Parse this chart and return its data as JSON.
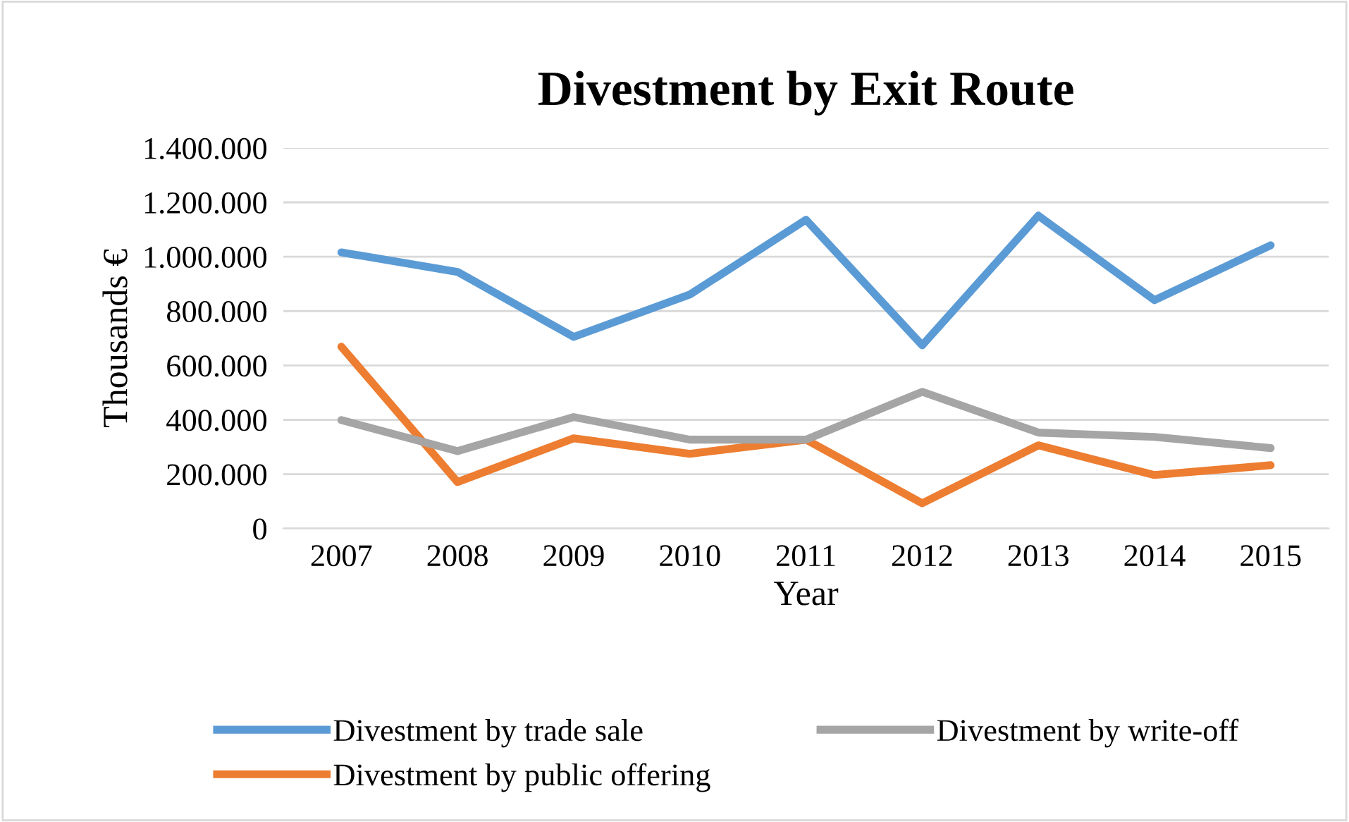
{
  "chart_data": {
    "type": "line",
    "title": "Divestment by Exit Route",
    "xlabel": "Year",
    "ylabel": "Thousands €",
    "categories": [
      "2007",
      "2008",
      "2009",
      "2010",
      "2011",
      "2012",
      "2013",
      "2014",
      "2015"
    ],
    "series": [
      {
        "name": "Divestment by trade sale",
        "color": "#5b9bd5",
        "values": [
          1016000,
          944000,
          705000,
          861000,
          1136000,
          674000,
          1151000,
          840000,
          1042000
        ]
      },
      {
        "name": "Divestment by public offering",
        "color": "#ed7d31",
        "values": [
          669000,
          171000,
          332000,
          275000,
          327000,
          93000,
          306000,
          197000,
          233000
        ]
      },
      {
        "name": "Divestment by write-off",
        "color": "#a5a5a5",
        "values": [
          399000,
          285000,
          410000,
          327000,
          327000,
          503000,
          353000,
          337000,
          296000
        ]
      }
    ],
    "ylim": [
      0,
      1400000
    ],
    "yticks": [
      0,
      {
        "value": 200000,
        "label": "200.000"
      },
      {
        "value": 400000,
        "label": "400.000"
      },
      {
        "value": 600000,
        "label": "600.000"
      },
      {
        "value": 800000,
        "label": "800.000"
      },
      {
        "value": 1000000,
        "label": "1.000.000"
      },
      {
        "value": 1200000,
        "label": "1.200.000"
      },
      {
        "value": 1400000,
        "label": "1.400.000"
      }
    ],
    "grid": "y",
    "legend": "bottom",
    "marker": "none",
    "line_style": "solid"
  }
}
